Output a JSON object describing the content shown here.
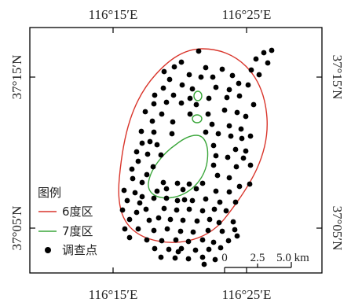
{
  "axes": {
    "top": [
      "116°15′E",
      "116°25′E"
    ],
    "bottom": [
      "116°15′E",
      "116°25′E"
    ],
    "left": [
      "37°15′N",
      "37°05′N"
    ],
    "right": [
      "37°15′N",
      "37°05′N"
    ]
  },
  "legend": {
    "title": "图例",
    "items": [
      {
        "label": "6度区",
        "color": "#d9352b",
        "symbol": "line"
      },
      {
        "label": "7度区",
        "color": "#3aa63a",
        "symbol": "line"
      },
      {
        "label": "调查点",
        "color": "#000000",
        "symbol": "dot"
      }
    ]
  },
  "scale_bar": {
    "labels": [
      "0",
      "2.5",
      "5.0 km"
    ]
  },
  "colors": {
    "zone6": "#d9352b",
    "zone7": "#3aa63a",
    "point": "#000000",
    "frame": "#000000"
  }
}
